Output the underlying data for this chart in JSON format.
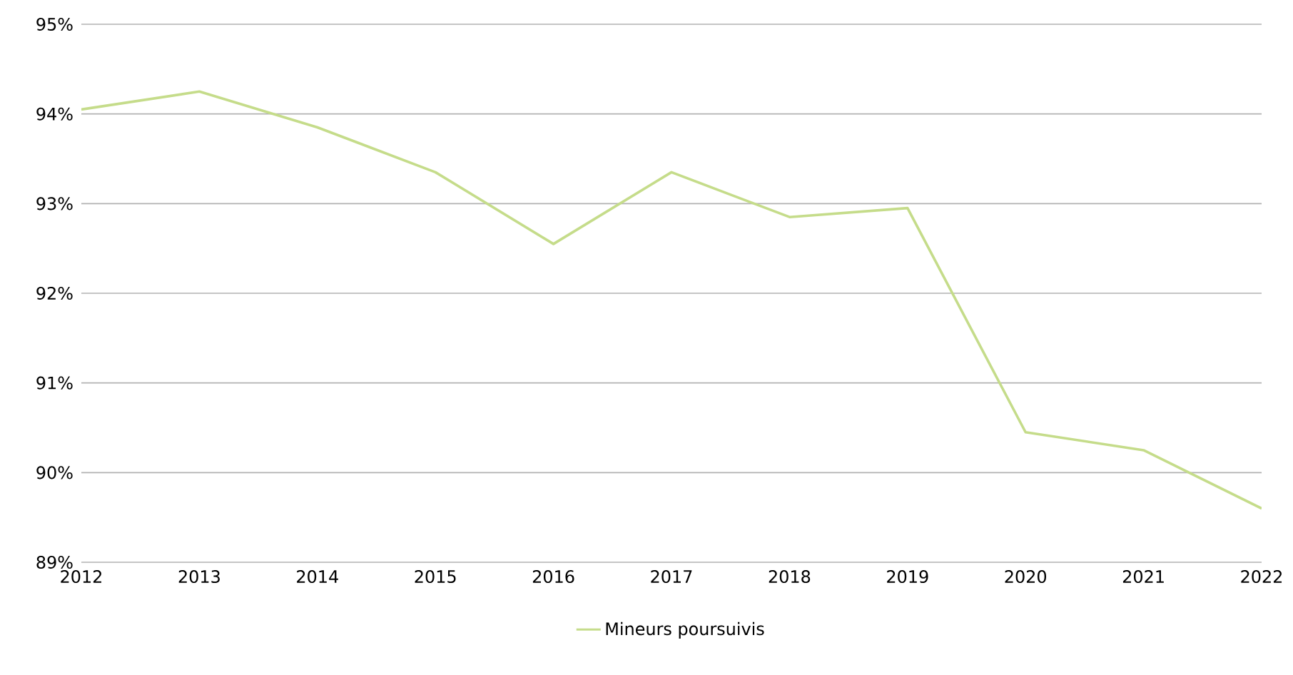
{
  "chart_data": {
    "type": "line",
    "x": [
      2012,
      2013,
      2014,
      2015,
      2016,
      2017,
      2018,
      2019,
      2020,
      2021,
      2022
    ],
    "series": [
      {
        "name": "Mineurs poursuivis",
        "color": "#c5dc8a",
        "values": [
          94.05,
          94.25,
          93.85,
          93.35,
          92.55,
          93.35,
          92.85,
          92.95,
          90.45,
          90.25,
          89.6
        ]
      }
    ],
    "xlim": [
      2012,
      2022
    ],
    "xticks": [
      2012,
      2013,
      2014,
      2015,
      2016,
      2017,
      2018,
      2019,
      2020,
      2021,
      2022
    ],
    "ylim": [
      89,
      95
    ],
    "yticks": [
      {
        "value": 89,
        "label": "89%"
      },
      {
        "value": 90,
        "label": "90%"
      },
      {
        "value": 91,
        "label": "91%"
      },
      {
        "value": 92,
        "label": "92%"
      },
      {
        "value": 93,
        "label": "93%"
      },
      {
        "value": 94,
        "label": "94%"
      },
      {
        "value": 95,
        "label": "95%"
      }
    ],
    "grid": "y",
    "legend": "bottom",
    "marker": "none",
    "line_style": "solid"
  }
}
